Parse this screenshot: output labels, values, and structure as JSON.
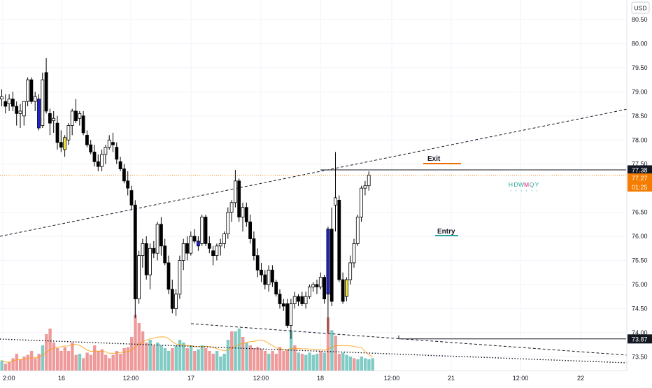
{
  "currency_label": "USD",
  "price_levels": [
    {
      "value": 80.5,
      "label": "80.50"
    },
    {
      "value": 80.0,
      "label": "80.00"
    },
    {
      "value": 79.5,
      "label": "79.50"
    },
    {
      "value": 79.0,
      "label": "79.00"
    },
    {
      "value": 78.5,
      "label": "78.50"
    },
    {
      "value": 78.0,
      "label": "78.00"
    },
    {
      "value": 77.5,
      "label": "77.50"
    },
    {
      "value": 76.5,
      "label": "76.50"
    },
    {
      "value": 76.0,
      "label": "76.00"
    },
    {
      "value": 75.5,
      "label": "75.50"
    },
    {
      "value": 75.0,
      "label": "75.00"
    },
    {
      "value": 74.5,
      "label": "74.50"
    },
    {
      "value": 74.0,
      "label": "74.00"
    },
    {
      "value": 73.5,
      "label": "73.50"
    }
  ],
  "time_ticks": [
    "2:00",
    "16",
    "12:00",
    "17",
    "12:00",
    "18",
    "12:00",
    "21",
    "12:00",
    "22"
  ],
  "price_tags": {
    "exit_level": {
      "label": "77.38",
      "color": "#131722"
    },
    "last_price": {
      "label": "77.27",
      "color": "#f57c00"
    },
    "countdown": {
      "label": "01:25",
      "color": "#f57c00"
    },
    "entry_level": {
      "label": "73.87",
      "color": "#131722"
    }
  },
  "annotations": {
    "exit": "Exit",
    "entry": "Entry"
  },
  "timeframe_markers": {
    "letters": [
      "H",
      "D",
      "W",
      "M",
      "Q",
      "Y"
    ],
    "color": "#26a69a",
    "highlight_color": "#e91e63"
  },
  "colors": {
    "candle_up": "#ffffff",
    "candle_down": "#000000",
    "candle_blue": "#1e22d6",
    "candle_yellow": "#f5e342",
    "volume_up": "#80cbc4",
    "volume_down": "#ef9a9a",
    "exit_line": "#ef6c00",
    "entry_line": "#26a69a"
  },
  "chart_data": {
    "type": "candlestick",
    "y_range": [
      73.25,
      80.75
    ],
    "candles": [
      {
        "o": 78.85,
        "h": 79.05,
        "l": 78.7,
        "c": 78.9
      },
      {
        "o": 78.8,
        "h": 78.95,
        "l": 78.55,
        "c": 78.7
      },
      {
        "o": 78.75,
        "h": 78.95,
        "l": 78.6,
        "c": 78.85
      },
      {
        "o": 78.85,
        "h": 79.0,
        "l": 78.6,
        "c": 78.7
      },
      {
        "o": 78.7,
        "h": 78.8,
        "l": 78.3,
        "c": 78.55
      },
      {
        "o": 78.55,
        "h": 78.75,
        "l": 78.25,
        "c": 78.6
      },
      {
        "o": 78.5,
        "h": 78.8,
        "l": 78.3,
        "c": 78.8
      },
      {
        "o": 78.8,
        "h": 79.3,
        "l": 78.7,
        "c": 79.25
      },
      {
        "o": 79.25,
        "h": 79.3,
        "l": 78.75,
        "c": 78.8
      },
      {
        "o": 78.8,
        "h": 79.0,
        "l": 78.6,
        "c": 78.9
      },
      {
        "o": 78.85,
        "h": 78.95,
        "l": 78.2,
        "c": 78.25
      },
      {
        "o": 78.3,
        "h": 79.4,
        "l": 78.25,
        "c": 79.25
      },
      {
        "o": 79.4,
        "h": 79.7,
        "l": 78.55,
        "c": 78.6
      },
      {
        "o": 78.55,
        "h": 78.65,
        "l": 78.1,
        "c": 78.35
      },
      {
        "o": 78.4,
        "h": 78.6,
        "l": 78.15,
        "c": 78.45
      },
      {
        "o": 78.35,
        "h": 78.5,
        "l": 77.8,
        "c": 77.95
      },
      {
        "o": 77.95,
        "h": 78.2,
        "l": 77.75,
        "c": 77.85
      },
      {
        "o": 77.8,
        "h": 78.1,
        "l": 77.65,
        "c": 78.05
      },
      {
        "o": 78.0,
        "h": 78.35,
        "l": 77.9,
        "c": 78.3
      },
      {
        "o": 78.3,
        "h": 78.65,
        "l": 78.1,
        "c": 78.6
      },
      {
        "o": 78.6,
        "h": 78.85,
        "l": 78.35,
        "c": 78.4
      },
      {
        "o": 78.45,
        "h": 78.6,
        "l": 78.3,
        "c": 78.55
      },
      {
        "o": 78.5,
        "h": 78.6,
        "l": 78.1,
        "c": 78.15
      },
      {
        "o": 78.1,
        "h": 78.2,
        "l": 77.85,
        "c": 77.9
      },
      {
        "o": 77.9,
        "h": 78.0,
        "l": 77.7,
        "c": 77.75
      },
      {
        "o": 77.75,
        "h": 77.9,
        "l": 77.45,
        "c": 77.55
      },
      {
        "o": 77.55,
        "h": 77.7,
        "l": 77.35,
        "c": 77.45
      },
      {
        "o": 77.45,
        "h": 77.8,
        "l": 77.35,
        "c": 77.7
      },
      {
        "o": 77.7,
        "h": 77.9,
        "l": 77.5,
        "c": 77.85
      },
      {
        "o": 77.85,
        "h": 78.1,
        "l": 77.8,
        "c": 78.0
      },
      {
        "o": 77.95,
        "h": 78.15,
        "l": 77.75,
        "c": 77.9
      },
      {
        "o": 77.85,
        "h": 77.95,
        "l": 77.5,
        "c": 77.6
      },
      {
        "o": 77.55,
        "h": 77.65,
        "l": 77.35,
        "c": 77.4
      },
      {
        "o": 77.4,
        "h": 77.5,
        "l": 77.1,
        "c": 77.15
      },
      {
        "o": 77.15,
        "h": 77.35,
        "l": 76.85,
        "c": 77.0
      },
      {
        "o": 76.95,
        "h": 77.05,
        "l": 76.55,
        "c": 76.65
      },
      {
        "o": 76.65,
        "h": 76.75,
        "l": 74.3,
        "c": 74.7
      },
      {
        "o": 74.7,
        "h": 75.7,
        "l": 74.6,
        "c": 75.6
      },
      {
        "o": 75.6,
        "h": 75.95,
        "l": 75.35,
        "c": 75.85
      },
      {
        "o": 75.85,
        "h": 76.0,
        "l": 75.1,
        "c": 75.2
      },
      {
        "o": 75.2,
        "h": 75.85,
        "l": 74.9,
        "c": 75.75
      },
      {
        "o": 75.75,
        "h": 75.9,
        "l": 75.55,
        "c": 75.65
      },
      {
        "o": 75.65,
        "h": 76.3,
        "l": 75.5,
        "c": 76.25
      },
      {
        "o": 76.25,
        "h": 76.4,
        "l": 75.6,
        "c": 75.8
      },
      {
        "o": 75.8,
        "h": 75.95,
        "l": 75.4,
        "c": 75.45
      },
      {
        "o": 75.45,
        "h": 75.6,
        "l": 74.8,
        "c": 74.9
      },
      {
        "o": 74.9,
        "h": 75.1,
        "l": 74.4,
        "c": 74.5
      },
      {
        "o": 74.5,
        "h": 74.9,
        "l": 74.35,
        "c": 74.8
      },
      {
        "o": 74.8,
        "h": 75.6,
        "l": 74.7,
        "c": 75.5
      },
      {
        "o": 75.5,
        "h": 75.95,
        "l": 75.3,
        "c": 75.85
      },
      {
        "o": 75.85,
        "h": 76.0,
        "l": 75.5,
        "c": 75.65
      },
      {
        "o": 75.65,
        "h": 76.1,
        "l": 75.6,
        "c": 76.0
      },
      {
        "o": 76.0,
        "h": 76.15,
        "l": 75.85,
        "c": 75.9
      },
      {
        "o": 75.8,
        "h": 76.0,
        "l": 75.7,
        "c": 75.9
      },
      {
        "o": 75.85,
        "h": 76.45,
        "l": 75.8,
        "c": 76.4
      },
      {
        "o": 76.4,
        "h": 76.45,
        "l": 75.8,
        "c": 75.85
      },
      {
        "o": 75.85,
        "h": 76.0,
        "l": 75.65,
        "c": 75.75
      },
      {
        "o": 75.7,
        "h": 75.8,
        "l": 75.4,
        "c": 75.6
      },
      {
        "o": 75.6,
        "h": 75.85,
        "l": 75.5,
        "c": 75.8
      },
      {
        "o": 75.8,
        "h": 75.95,
        "l": 75.6,
        "c": 75.85
      },
      {
        "o": 75.85,
        "h": 76.1,
        "l": 75.75,
        "c": 76.05
      },
      {
        "o": 76.05,
        "h": 76.6,
        "l": 75.95,
        "c": 76.5
      },
      {
        "o": 76.5,
        "h": 76.75,
        "l": 76.3,
        "c": 76.7
      },
      {
        "o": 76.7,
        "h": 77.38,
        "l": 76.6,
        "c": 77.15
      },
      {
        "o": 77.15,
        "h": 77.2,
        "l": 76.3,
        "c": 76.4
      },
      {
        "o": 76.4,
        "h": 76.7,
        "l": 76.1,
        "c": 76.6
      },
      {
        "o": 76.6,
        "h": 76.7,
        "l": 76.2,
        "c": 76.3
      },
      {
        "o": 76.3,
        "h": 76.45,
        "l": 75.85,
        "c": 75.95
      },
      {
        "o": 75.95,
        "h": 76.1,
        "l": 75.5,
        "c": 75.6
      },
      {
        "o": 75.6,
        "h": 75.75,
        "l": 75.15,
        "c": 75.3
      },
      {
        "o": 75.3,
        "h": 75.45,
        "l": 75.05,
        "c": 75.2
      },
      {
        "o": 75.2,
        "h": 75.3,
        "l": 74.9,
        "c": 75.0
      },
      {
        "o": 75.0,
        "h": 75.4,
        "l": 74.85,
        "c": 75.3
      },
      {
        "o": 75.3,
        "h": 75.4,
        "l": 74.95,
        "c": 75.05
      },
      {
        "o": 75.05,
        "h": 75.1,
        "l": 74.75,
        "c": 74.8
      },
      {
        "o": 74.8,
        "h": 74.9,
        "l": 74.5,
        "c": 74.6
      },
      {
        "o": 74.6,
        "h": 74.7,
        "l": 74.45,
        "c": 74.55
      },
      {
        "o": 74.6,
        "h": 74.7,
        "l": 74.1,
        "c": 74.15
      },
      {
        "o": 74.15,
        "h": 74.7,
        "l": 73.87,
        "c": 74.6
      },
      {
        "o": 74.6,
        "h": 74.85,
        "l": 74.5,
        "c": 74.75
      },
      {
        "o": 74.75,
        "h": 74.8,
        "l": 74.55,
        "c": 74.65
      },
      {
        "o": 74.75,
        "h": 74.85,
        "l": 74.55,
        "c": 74.6
      },
      {
        "o": 74.6,
        "h": 74.85,
        "l": 74.5,
        "c": 74.75
      },
      {
        "o": 74.75,
        "h": 75.0,
        "l": 74.7,
        "c": 74.95
      },
      {
        "o": 74.95,
        "h": 75.05,
        "l": 74.85,
        "c": 75.0
      },
      {
        "o": 75.0,
        "h": 75.1,
        "l": 74.8,
        "c": 74.95
      },
      {
        "o": 74.95,
        "h": 75.25,
        "l": 74.9,
        "c": 75.15
      },
      {
        "o": 75.15,
        "h": 75.2,
        "l": 74.6,
        "c": 74.7
      },
      {
        "o": 74.8,
        "h": 76.2,
        "l": 74.0,
        "c": 76.15
      },
      {
        "o": 76.15,
        "h": 76.6,
        "l": 74.55,
        "c": 74.65
      },
      {
        "o": 76.65,
        "h": 77.75,
        "l": 76.1,
        "c": 76.8
      },
      {
        "o": 76.75,
        "h": 76.85,
        "l": 75.05,
        "c": 75.1
      },
      {
        "o": 75.1,
        "h": 75.25,
        "l": 74.6,
        "c": 74.65
      },
      {
        "o": 74.75,
        "h": 75.15,
        "l": 74.65,
        "c": 75.1
      },
      {
        "o": 75.1,
        "h": 75.6,
        "l": 75.0,
        "c": 75.45
      },
      {
        "o": 75.45,
        "h": 75.95,
        "l": 75.35,
        "c": 75.85
      },
      {
        "o": 75.85,
        "h": 76.45,
        "l": 75.8,
        "c": 76.4
      },
      {
        "o": 76.4,
        "h": 77.05,
        "l": 76.3,
        "c": 77.0
      },
      {
        "o": 77.0,
        "h": 77.15,
        "l": 76.85,
        "c": 77.05
      },
      {
        "o": 77.05,
        "h": 77.35,
        "l": 76.95,
        "c": 77.27
      }
    ],
    "blue_candles": [
      10,
      53,
      88
    ],
    "yellow_candles": [
      17,
      93
    ],
    "volume": [
      {
        "v": 0.18,
        "up": true
      },
      {
        "v": 0.12,
        "up": false
      },
      {
        "v": 0.15,
        "up": false
      },
      {
        "v": 0.22,
        "up": false
      },
      {
        "v": 0.3,
        "up": false
      },
      {
        "v": 0.2,
        "up": false
      },
      {
        "v": 0.25,
        "up": false
      },
      {
        "v": 0.28,
        "up": false
      },
      {
        "v": 0.35,
        "up": false
      },
      {
        "v": 0.22,
        "up": false
      },
      {
        "v": 0.3,
        "up": false
      },
      {
        "v": 0.45,
        "up": true
      },
      {
        "v": 0.65,
        "up": false
      },
      {
        "v": 0.75,
        "up": false
      },
      {
        "v": 0.5,
        "up": false
      },
      {
        "v": 0.4,
        "up": false
      },
      {
        "v": 0.35,
        "up": false
      },
      {
        "v": 0.42,
        "up": false
      },
      {
        "v": 0.35,
        "up": false
      },
      {
        "v": 0.5,
        "up": false
      },
      {
        "v": 0.28,
        "up": false
      },
      {
        "v": 0.3,
        "up": true
      },
      {
        "v": 0.22,
        "up": false
      },
      {
        "v": 0.32,
        "up": false
      },
      {
        "v": 0.28,
        "up": false
      },
      {
        "v": 0.45,
        "up": false
      },
      {
        "v": 0.35,
        "up": false
      },
      {
        "v": 0.38,
        "up": false
      },
      {
        "v": 0.28,
        "up": false
      },
      {
        "v": 0.22,
        "up": false
      },
      {
        "v": 0.28,
        "up": false
      },
      {
        "v": 0.35,
        "up": false
      },
      {
        "v": 0.3,
        "up": false
      },
      {
        "v": 0.4,
        "up": false
      },
      {
        "v": 0.42,
        "up": false
      },
      {
        "v": 0.6,
        "up": false
      },
      {
        "v": 1.0,
        "up": false
      },
      {
        "v": 0.85,
        "up": false
      },
      {
        "v": 0.7,
        "up": false
      },
      {
        "v": 0.5,
        "up": false
      },
      {
        "v": 0.55,
        "up": true
      },
      {
        "v": 0.45,
        "up": false
      },
      {
        "v": 0.5,
        "up": true
      },
      {
        "v": 0.45,
        "up": true
      },
      {
        "v": 0.4,
        "up": true
      },
      {
        "v": 0.35,
        "up": true
      },
      {
        "v": 0.4,
        "up": false
      },
      {
        "v": 0.45,
        "up": true
      },
      {
        "v": 0.55,
        "up": true
      },
      {
        "v": 0.5,
        "up": true
      },
      {
        "v": 0.4,
        "up": false
      },
      {
        "v": 0.45,
        "up": true
      },
      {
        "v": 0.35,
        "up": false
      },
      {
        "v": 0.38,
        "up": true
      },
      {
        "v": 0.45,
        "up": true
      },
      {
        "v": 0.4,
        "up": false
      },
      {
        "v": 0.35,
        "up": false
      },
      {
        "v": 0.3,
        "up": false
      },
      {
        "v": 0.35,
        "up": true
      },
      {
        "v": 0.25,
        "up": true
      },
      {
        "v": 0.3,
        "up": true
      },
      {
        "v": 0.55,
        "up": true
      },
      {
        "v": 0.7,
        "up": false
      },
      {
        "v": 0.7,
        "up": true
      },
      {
        "v": 0.75,
        "up": true
      },
      {
        "v": 0.6,
        "up": false
      },
      {
        "v": 0.5,
        "up": true
      },
      {
        "v": 0.45,
        "up": false
      },
      {
        "v": 0.4,
        "up": false
      },
      {
        "v": 0.42,
        "up": false
      },
      {
        "v": 0.38,
        "up": false
      },
      {
        "v": 0.35,
        "up": false
      },
      {
        "v": 0.3,
        "up": true
      },
      {
        "v": 0.35,
        "up": false
      },
      {
        "v": 0.3,
        "up": false
      },
      {
        "v": 0.42,
        "up": false
      },
      {
        "v": 0.35,
        "up": false
      },
      {
        "v": 0.38,
        "up": false
      },
      {
        "v": 0.72,
        "up": true
      },
      {
        "v": 0.45,
        "up": false
      },
      {
        "v": 0.32,
        "up": true
      },
      {
        "v": 0.3,
        "up": false
      },
      {
        "v": 0.28,
        "up": true
      },
      {
        "v": 0.32,
        "up": true
      },
      {
        "v": 0.28,
        "up": true
      },
      {
        "v": 0.3,
        "up": true
      },
      {
        "v": 0.35,
        "up": false
      },
      {
        "v": 0.32,
        "up": true
      },
      {
        "v": 0.95,
        "up": false
      },
      {
        "v": 0.72,
        "up": true
      },
      {
        "v": 0.62,
        "up": false
      },
      {
        "v": 0.3,
        "up": false
      },
      {
        "v": 0.32,
        "up": true
      },
      {
        "v": 0.28,
        "up": true
      },
      {
        "v": 0.25,
        "up": true
      },
      {
        "v": 0.22,
        "up": false
      },
      {
        "v": 0.2,
        "up": true
      },
      {
        "v": 0.25,
        "up": true
      },
      {
        "v": 0.22,
        "up": true
      },
      {
        "v": 0.2,
        "up": true
      },
      {
        "v": 0.22,
        "up": true
      }
    ],
    "levels": {
      "exit": 77.38,
      "last": 77.27,
      "entry": 73.87
    }
  }
}
